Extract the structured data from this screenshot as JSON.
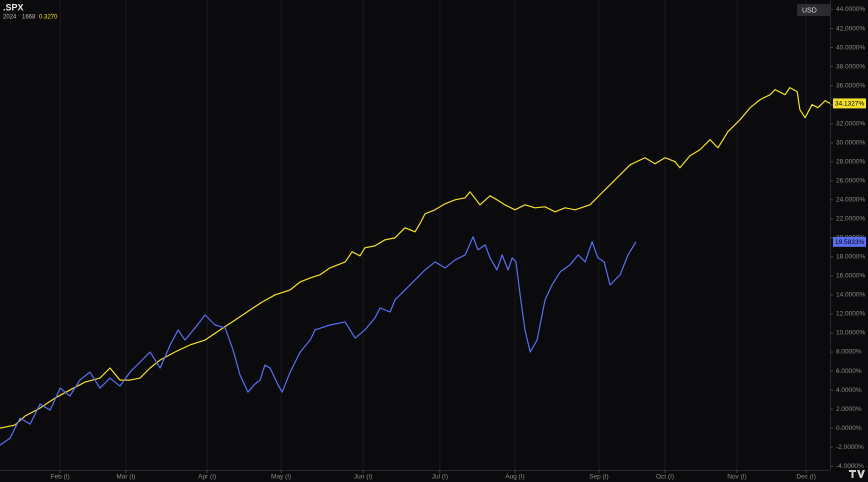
{
  "chart_data": {
    "type": "line",
    "title": ".SPX",
    "subtitle": [
      "2024",
      "1668",
      "0.3270"
    ],
    "currency": "USD",
    "xlim": [
      0,
      240
    ],
    "ylim": [
      -4.4,
      45.0
    ],
    "grid": "x",
    "xticks": [
      {
        "value": 17.4,
        "label": "Feb (I)"
      },
      {
        "value": 36.4,
        "label": "Mar (I)"
      },
      {
        "value": 59.9,
        "label": "Apr (I)"
      },
      {
        "value": 81.3,
        "label": "May (I)"
      },
      {
        "value": 105.0,
        "label": "Jun (I)"
      },
      {
        "value": 127.2,
        "label": "Jul (I)"
      },
      {
        "value": 148.9,
        "label": "Aug (I)"
      },
      {
        "value": 173.2,
        "label": "Sep (I)"
      },
      {
        "value": 192.3,
        "label": "Oct (I)"
      },
      {
        "value": 213.1,
        "label": "Nov (I)"
      },
      {
        "value": 233.1,
        "label": "Dec (I)"
      }
    ],
    "yticks": [
      {
        "value": -4,
        "label": "-4.0000%"
      },
      {
        "value": -2,
        "label": "-2.0000%"
      },
      {
        "value": 0,
        "label": "0.0000%"
      },
      {
        "value": 2,
        "label": "2.0000%"
      },
      {
        "value": 4,
        "label": "4.0000%"
      },
      {
        "value": 6,
        "label": "6.0000%"
      },
      {
        "value": 8,
        "label": "8.0000%"
      },
      {
        "value": 10,
        "label": "10.0000%"
      },
      {
        "value": 12,
        "label": "12.0000%"
      },
      {
        "value": 14,
        "label": "14.0000%"
      },
      {
        "value": 16,
        "label": "16.0000%"
      },
      {
        "value": 18,
        "label": "18.0000%"
      },
      {
        "value": 20,
        "label": "20.0000%"
      },
      {
        "value": 22,
        "label": "22.0000%"
      },
      {
        "value": 24,
        "label": "24.0000%"
      },
      {
        "value": 26,
        "label": "26.0000%"
      },
      {
        "value": 28,
        "label": "28.0000%"
      },
      {
        "value": 30,
        "label": "30.0000%"
      },
      {
        "value": 32,
        "label": "32.0000%"
      },
      {
        "value": 34,
        "label": "34.0000%"
      },
      {
        "value": 36,
        "label": "36.0000%"
      },
      {
        "value": 38,
        "label": "38.0000%"
      },
      {
        "value": 40,
        "label": "40.0000%"
      },
      {
        "value": 42,
        "label": "42.0000%"
      },
      {
        "value": 44,
        "label": "44.0000%"
      }
    ],
    "series": [
      {
        "color": "#f3e02b",
        "end_label": "34.1327%",
        "x": [
          0,
          4.3,
          7.2,
          11.6,
          15.9,
          20.2,
          24.6,
          28.9,
          31.8,
          34.7,
          37.6,
          40.5,
          43.4,
          46.3,
          50.6,
          54.9,
          59.3,
          63.6,
          68.0,
          72.3,
          75.8,
          79.5,
          83.9,
          86.8,
          89.7,
          92.5,
          95.4,
          99.8,
          101.8,
          104.1,
          105.5,
          108.4,
          111.3,
          114.2,
          117.1,
          120.0,
          121.4,
          122.9,
          125.8,
          128.7,
          131.6,
          134.5,
          135.9,
          138.8,
          141.7,
          143.7,
          146.0,
          148.9,
          151.8,
          154.7,
          157.6,
          160.5,
          163.4,
          166.3,
          170.6,
          173.5,
          176.4,
          179.3,
          182.2,
          186.5,
          189.4,
          192.3,
          195.2,
          196.6,
          199.5,
          202.4,
          205.3,
          207.6,
          210.5,
          214.0,
          216.9,
          219.8,
          222.7,
          224.1,
          227.0,
          228.4,
          230.5,
          231.3,
          232.8,
          234.8,
          236.5,
          238.6,
          240
        ],
        "values": [
          0,
          0.32,
          1.26,
          2.11,
          3.16,
          4.0,
          4.84,
          5.26,
          6.32,
          5.05,
          5.05,
          5.26,
          6.32,
          7.16,
          8.0,
          8.74,
          9.26,
          10.32,
          11.37,
          12.42,
          13.26,
          14.0,
          14.53,
          15.37,
          15.79,
          16.11,
          16.84,
          17.47,
          18.53,
          18.11,
          18.95,
          19.16,
          19.79,
          20.0,
          21.05,
          20.63,
          21.47,
          22.53,
          22.95,
          23.58,
          24.0,
          24.21,
          24.84,
          23.47,
          24.42,
          24.0,
          23.47,
          22.95,
          23.47,
          23.16,
          23.26,
          22.74,
          23.16,
          22.95,
          23.47,
          24.53,
          25.58,
          26.63,
          27.68,
          28.42,
          27.79,
          28.42,
          28.0,
          27.37,
          28.63,
          29.26,
          30.32,
          29.47,
          31.16,
          32.42,
          33.68,
          34.53,
          35.05,
          35.58,
          35.05,
          35.79,
          35.37,
          33.47,
          32.63,
          34.0,
          33.68,
          34.42,
          34.13
        ]
      },
      {
        "color": "#5a6ef0",
        "end_label": "19.5833%",
        "x": [
          0,
          2.9,
          5.8,
          8.7,
          11.6,
          14.5,
          17.4,
          20.2,
          23.1,
          26.0,
          28.9,
          31.8,
          34.7,
          37.6,
          40.5,
          43.4,
          46.3,
          49.2,
          51.5,
          53.5,
          56.4,
          59.3,
          62.2,
          65.1,
          67.4,
          69.4,
          71.7,
          73.7,
          75.2,
          76.6,
          78.1,
          80.4,
          81.6,
          83.9,
          86.8,
          89.7,
          91.1,
          95.4,
          99.8,
          102.7,
          105.5,
          108.4,
          109.9,
          112.8,
          114.2,
          117.1,
          120.0,
          122.9,
          125.8,
          128.7,
          131.6,
          134.5,
          136.8,
          138.2,
          140.3,
          141.7,
          143.7,
          145.2,
          146.9,
          148.1,
          149.2,
          150.4,
          151.8,
          153.3,
          155.3,
          157.6,
          159.6,
          162.0,
          164.8,
          167.2,
          169.2,
          171.2,
          172.9,
          174.7,
          176.4,
          179.3,
          181.6,
          183.9
        ],
        "values": [
          -1.79,
          -1.05,
          1.05,
          0.42,
          2.53,
          1.89,
          4.21,
          3.37,
          5.05,
          5.89,
          4.21,
          5.26,
          4.42,
          5.89,
          6.95,
          8.0,
          6.32,
          8.74,
          10.32,
          9.26,
          10.53,
          11.89,
          10.84,
          10.53,
          8.21,
          5.58,
          3.79,
          4.63,
          5.05,
          6.63,
          6.32,
          4.53,
          3.79,
          5.89,
          8.0,
          9.26,
          10.32,
          10.84,
          11.16,
          9.47,
          10.32,
          11.58,
          12.63,
          12.21,
          13.47,
          14.53,
          15.58,
          16.63,
          17.47,
          16.84,
          17.68,
          18.21,
          20.11,
          18.74,
          19.26,
          17.89,
          16.63,
          18.21,
          16.63,
          17.89,
          17.47,
          14.0,
          10.32,
          8.0,
          9.26,
          13.47,
          15.05,
          16.42,
          17.16,
          18.21,
          17.47,
          19.58,
          17.89,
          17.47,
          15.05,
          16.11,
          18.21,
          19.58
        ]
      }
    ]
  }
}
